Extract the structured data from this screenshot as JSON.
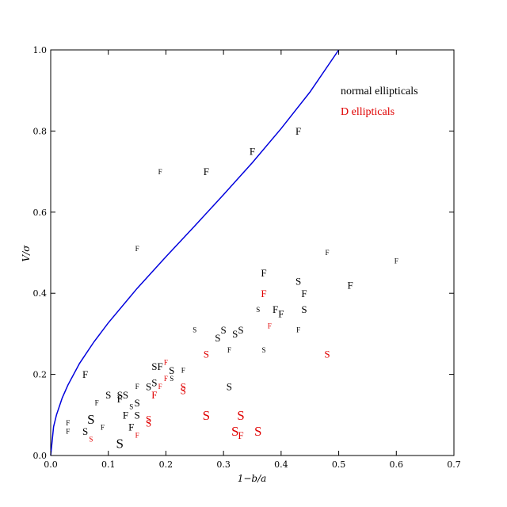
{
  "chart_data": {
    "type": "scatter",
    "title": "",
    "xlabel": "1−b/a",
    "ylabel": "V/σ",
    "xlim": [
      0.0,
      0.7
    ],
    "ylim": [
      0.0,
      1.0
    ],
    "xticks": [
      "0.0",
      "0.1",
      "0.2",
      "0.3",
      "0.4",
      "0.5",
      "0.6",
      "0.7"
    ],
    "yticks": [
      "0.0",
      "0.2",
      "0.4",
      "0.6",
      "0.8",
      "1.0"
    ],
    "grid": false,
    "legend_position": "top-right",
    "colors": {
      "normal": "#000000",
      "d": "#e00000",
      "curve": "#0000dd"
    },
    "legend": [
      {
        "label": "normal ellipticals",
        "color": "#000000"
      },
      {
        "label": "D ellipticals",
        "color": "#e00000"
      }
    ],
    "curve": {
      "x": [
        0.0,
        0.005,
        0.01,
        0.02,
        0.03,
        0.05,
        0.075,
        0.1,
        0.15,
        0.2,
        0.25,
        0.3,
        0.35,
        0.4,
        0.45,
        0.5
      ],
      "y": [
        0.0,
        0.071,
        0.1,
        0.142,
        0.174,
        0.227,
        0.28,
        0.327,
        0.412,
        0.49,
        0.566,
        0.643,
        0.722,
        0.806,
        0.896,
        1.0
      ]
    },
    "series": [
      {
        "name": "normal ellipticals",
        "points": [
          {
            "x": 0.43,
            "y": 0.8,
            "label": "F",
            "size": "large"
          },
          {
            "x": 0.35,
            "y": 0.75,
            "label": "F",
            "size": "large"
          },
          {
            "x": 0.27,
            "y": 0.7,
            "label": "F",
            "size": "large"
          },
          {
            "x": 0.19,
            "y": 0.7,
            "label": "F",
            "size": "small"
          },
          {
            "x": 0.15,
            "y": 0.51,
            "label": "F",
            "size": "small"
          },
          {
            "x": 0.48,
            "y": 0.5,
            "label": "F",
            "size": "small"
          },
          {
            "x": 0.6,
            "y": 0.48,
            "label": "F",
            "size": "small"
          },
          {
            "x": 0.37,
            "y": 0.45,
            "label": "F",
            "size": "large"
          },
          {
            "x": 0.43,
            "y": 0.43,
            "label": "S",
            "size": "large"
          },
          {
            "x": 0.52,
            "y": 0.42,
            "label": "F",
            "size": "large"
          },
          {
            "x": 0.44,
            "y": 0.4,
            "label": "F",
            "size": "large"
          },
          {
            "x": 0.36,
            "y": 0.36,
            "label": "S",
            "size": "small"
          },
          {
            "x": 0.39,
            "y": 0.36,
            "label": "F",
            "size": "large"
          },
          {
            "x": 0.4,
            "y": 0.35,
            "label": "F",
            "size": "large"
          },
          {
            "x": 0.44,
            "y": 0.36,
            "label": "S",
            "size": "large"
          },
          {
            "x": 0.25,
            "y": 0.31,
            "label": "S",
            "size": "small"
          },
          {
            "x": 0.3,
            "y": 0.31,
            "label": "S",
            "size": "large"
          },
          {
            "x": 0.32,
            "y": 0.3,
            "label": "S",
            "size": "large"
          },
          {
            "x": 0.33,
            "y": 0.31,
            "label": "S",
            "size": "large"
          },
          {
            "x": 0.29,
            "y": 0.29,
            "label": "S",
            "size": "large"
          },
          {
            "x": 0.43,
            "y": 0.31,
            "label": "F",
            "size": "small"
          },
          {
            "x": 0.31,
            "y": 0.26,
            "label": "F",
            "size": "small"
          },
          {
            "x": 0.37,
            "y": 0.26,
            "label": "S",
            "size": "small"
          },
          {
            "x": 0.06,
            "y": 0.2,
            "label": "F",
            "size": "large"
          },
          {
            "x": 0.18,
            "y": 0.22,
            "label": "S",
            "size": "large"
          },
          {
            "x": 0.19,
            "y": 0.22,
            "label": "F",
            "size": "large"
          },
          {
            "x": 0.21,
            "y": 0.21,
            "label": "S",
            "size": "large"
          },
          {
            "x": 0.23,
            "y": 0.21,
            "label": "F",
            "size": "small"
          },
          {
            "x": 0.21,
            "y": 0.19,
            "label": "S",
            "size": "small"
          },
          {
            "x": 0.18,
            "y": 0.18,
            "label": "S",
            "size": "large"
          },
          {
            "x": 0.15,
            "y": 0.17,
            "label": "F",
            "size": "small"
          },
          {
            "x": 0.17,
            "y": 0.17,
            "label": "S",
            "size": "large"
          },
          {
            "x": 0.31,
            "y": 0.17,
            "label": "S",
            "size": "large"
          },
          {
            "x": 0.1,
            "y": 0.15,
            "label": "S",
            "size": "large"
          },
          {
            "x": 0.12,
            "y": 0.15,
            "label": "S",
            "size": "large"
          },
          {
            "x": 0.13,
            "y": 0.15,
            "label": "S",
            "size": "large"
          },
          {
            "x": 0.08,
            "y": 0.13,
            "label": "F",
            "size": "small"
          },
          {
            "x": 0.12,
            "y": 0.14,
            "label": "F",
            "size": "large"
          },
          {
            "x": 0.15,
            "y": 0.13,
            "label": "S",
            "size": "large"
          },
          {
            "x": 0.14,
            "y": 0.12,
            "label": "S",
            "size": "small"
          },
          {
            "x": 0.13,
            "y": 0.1,
            "label": "F",
            "size": "large"
          },
          {
            "x": 0.15,
            "y": 0.1,
            "label": "S",
            "size": "large"
          },
          {
            "x": 0.07,
            "y": 0.09,
            "label": "S",
            "size": "xlarge"
          },
          {
            "x": 0.03,
            "y": 0.08,
            "label": "F",
            "size": "small"
          },
          {
            "x": 0.09,
            "y": 0.07,
            "label": "F",
            "size": "small"
          },
          {
            "x": 0.14,
            "y": 0.07,
            "label": "F",
            "size": "large"
          },
          {
            "x": 0.03,
            "y": 0.06,
            "label": "F",
            "size": "small"
          },
          {
            "x": 0.06,
            "y": 0.06,
            "label": "S",
            "size": "large"
          },
          {
            "x": 0.12,
            "y": 0.03,
            "label": "S",
            "size": "xlarge"
          }
        ]
      },
      {
        "name": "D ellipticals",
        "points": [
          {
            "x": 0.37,
            "y": 0.4,
            "label": "F",
            "size": "large"
          },
          {
            "x": 0.38,
            "y": 0.32,
            "label": "F",
            "size": "small"
          },
          {
            "x": 0.27,
            "y": 0.25,
            "label": "S",
            "size": "large"
          },
          {
            "x": 0.48,
            "y": 0.25,
            "label": "S",
            "size": "large"
          },
          {
            "x": 0.2,
            "y": 0.23,
            "label": "F",
            "size": "small"
          },
          {
            "x": 0.2,
            "y": 0.19,
            "label": "F",
            "size": "small"
          },
          {
            "x": 0.19,
            "y": 0.17,
            "label": "F",
            "size": "small"
          },
          {
            "x": 0.23,
            "y": 0.17,
            "label": "S",
            "size": "large"
          },
          {
            "x": 0.23,
            "y": 0.16,
            "label": "S",
            "size": "large"
          },
          {
            "x": 0.18,
            "y": 0.15,
            "label": "F",
            "size": "large"
          },
          {
            "x": 0.27,
            "y": 0.1,
            "label": "S",
            "size": "xlarge"
          },
          {
            "x": 0.33,
            "y": 0.1,
            "label": "S",
            "size": "xlarge"
          },
          {
            "x": 0.17,
            "y": 0.09,
            "label": "S",
            "size": "large"
          },
          {
            "x": 0.17,
            "y": 0.08,
            "label": "S",
            "size": "large"
          },
          {
            "x": 0.32,
            "y": 0.06,
            "label": "S",
            "size": "xlarge"
          },
          {
            "x": 0.36,
            "y": 0.06,
            "label": "S",
            "size": "xlarge"
          },
          {
            "x": 0.33,
            "y": 0.05,
            "label": "F",
            "size": "large"
          },
          {
            "x": 0.15,
            "y": 0.05,
            "label": "F",
            "size": "small"
          },
          {
            "x": 0.07,
            "y": 0.04,
            "label": "S",
            "size": "small"
          }
        ]
      }
    ]
  }
}
